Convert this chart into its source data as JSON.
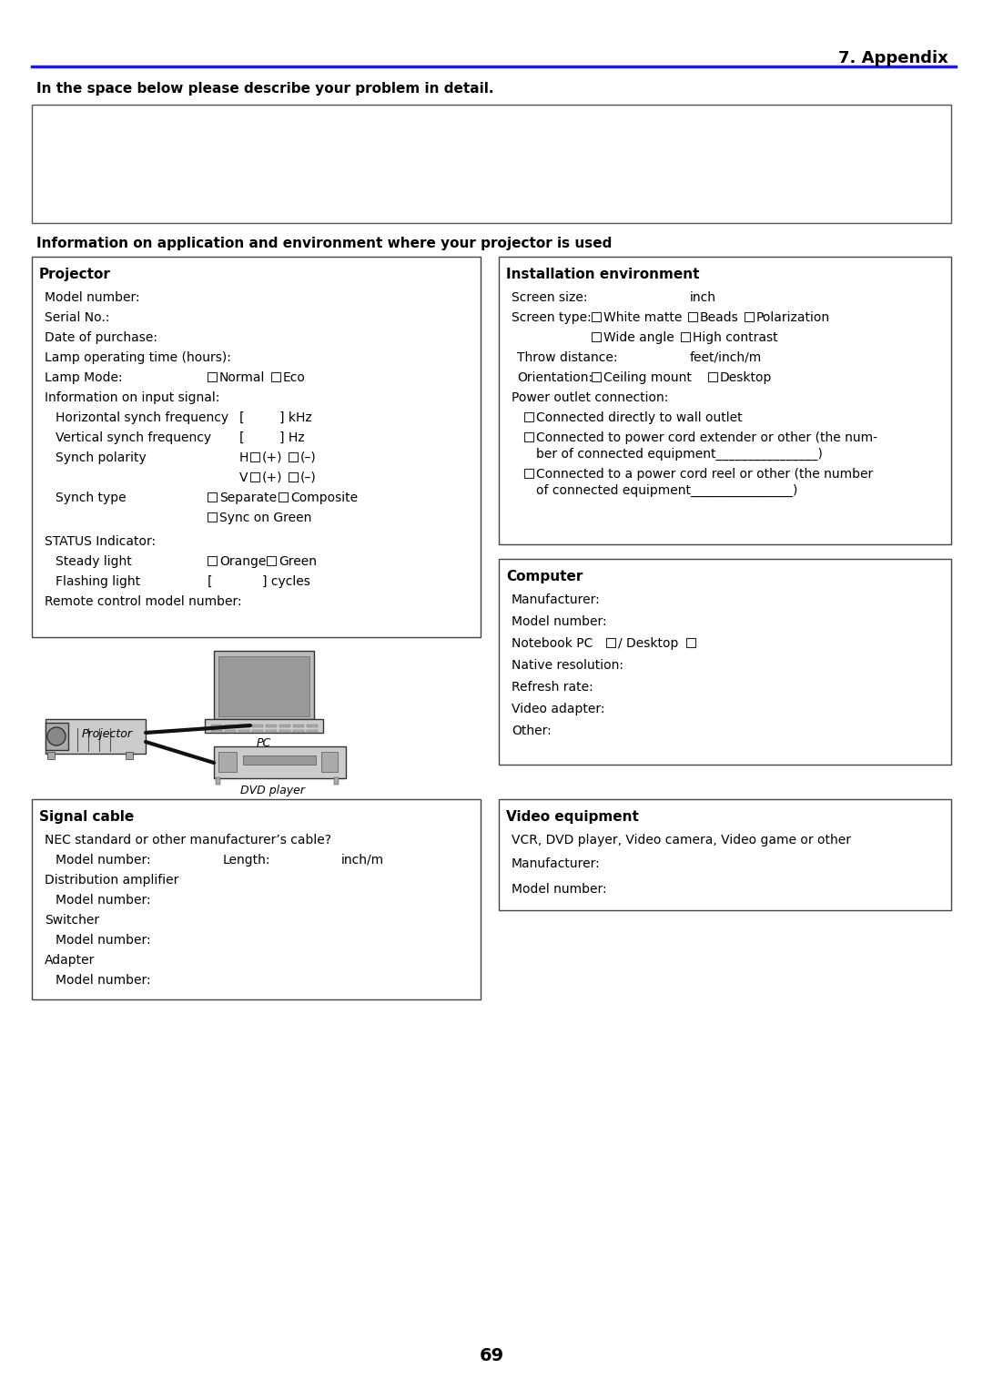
{
  "title_right": "7. Appendix",
  "blue_line_color": "#1e1ecc",
  "bg_color": "#ffffff",
  "text_color": "#000000",
  "bold_header_intro": "In the space below please describe your problem in detail.",
  "section_header": "Information on application and environment where your projector is used",
  "projector_title": "Projector",
  "install_title": "Installation environment",
  "computer_title": "Computer",
  "signal_title": "Signal cable",
  "video_title": "Video equipment",
  "page_number": "69"
}
